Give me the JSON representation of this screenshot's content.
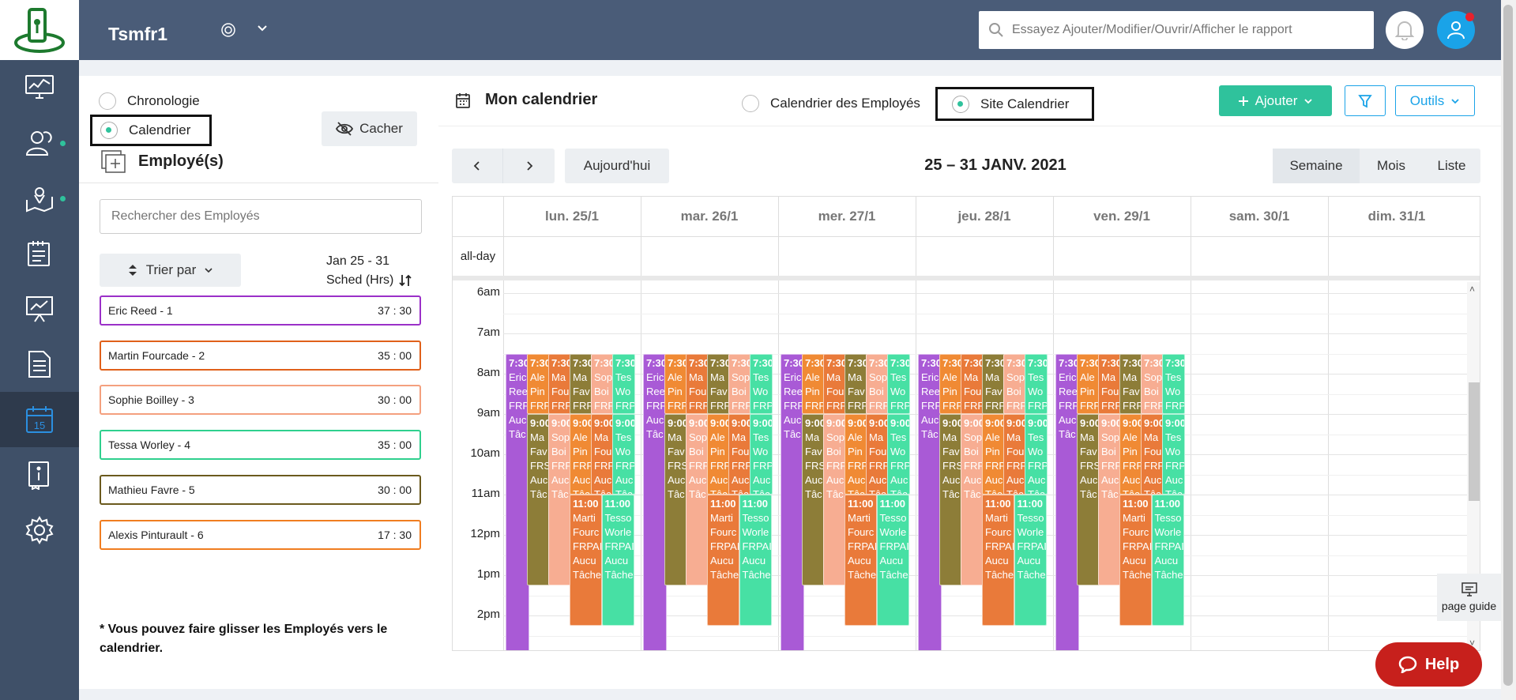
{
  "app": {
    "brand": "Tsmfr1"
  },
  "search": {
    "placeholder": "Essayez Ajouter/Modifier/Ouvrir/Afficher le rapport"
  },
  "sidebar": {
    "icons": [
      "dashboard-icon",
      "users-icon",
      "map-icon",
      "clipboard-icon",
      "presentation-icon",
      "document-icon",
      "calendar-icon",
      "info-book-icon",
      "settings-icon"
    ],
    "calendar_day": "15"
  },
  "left_panel": {
    "view_options": [
      "Chronologie",
      "Calendrier"
    ],
    "selected_view": "Calendrier",
    "hide_label": "Cacher",
    "employees_title": "Employé(s)",
    "search_placeholder": "Rechercher des Employés",
    "sort_label": "Trier par",
    "period_label": "Jan 25 - 31",
    "sched_label": "Sched (Hrs)",
    "employees": [
      {
        "name": "Eric Reed - 1",
        "hours": "37 : 30",
        "color": "#9b30c8"
      },
      {
        "name": "Martin Fourcade - 2",
        "hours": "35 : 00",
        "color": "#e0601a"
      },
      {
        "name": "Sophie Boilley - 3",
        "hours": "30 : 00",
        "color": "#f4a07e"
      },
      {
        "name": "Tessa Worley - 4",
        "hours": "35 : 00",
        "color": "#2fd08e"
      },
      {
        "name": "Mathieu Favre - 5",
        "hours": "30 : 00",
        "color": "#6b5a1e"
      },
      {
        "name": "Alexis Pinturault - 6",
        "hours": "17 : 30",
        "color": "#f07d20"
      }
    ],
    "drag_note": "* Vous pouvez faire glisser les Employés vers le calendrier."
  },
  "calendar": {
    "title": "Mon calendrier",
    "mode_employees": "Calendrier des Employés",
    "mode_site": "Site Calendrier",
    "add_label": "Ajouter",
    "tools_label": "Outils",
    "today_label": "Aujourd'hui",
    "range_title": "25 – 31 JANV. 2021",
    "views": [
      "Semaine",
      "Mois",
      "Liste"
    ],
    "days": [
      "lun. 25/1",
      "mar. 26/1",
      "mer. 27/1",
      "jeu. 28/1",
      "ven. 29/1",
      "sam. 30/1",
      "dim. 31/1"
    ],
    "allday_label": "all-day",
    "hours": [
      "6am",
      "7am",
      "8am",
      "9am",
      "10am",
      "11am",
      "12pm",
      "1pm",
      "2pm"
    ],
    "event_colors": {
      "eric": "#a95ad6",
      "alexis": "#f08a34",
      "martin": "#e97a3a",
      "mathieu": "#8d7d38",
      "sophie": "#f7ad92",
      "tessa": "#47e0a4"
    },
    "event_texts": {
      "t730": "7:30",
      "t900": "9:00",
      "t1100": "11:00",
      "eric": [
        "Eric",
        "Reed",
        "FRP",
        "Auc",
        "Tâc"
      ],
      "alexis": [
        "Ale",
        "Pin",
        "FRP"
      ],
      "martin_short": [
        "Ma",
        "Fou",
        "FRP"
      ],
      "mathieu": [
        "Ma",
        "Fav",
        "FRP"
      ],
      "sophie": [
        "Sop",
        "Boi",
        "FRP"
      ],
      "tessa": [
        "Tes",
        "Wo",
        "FRP"
      ],
      "mathieu9": [
        "Ma",
        "Fav",
        "FRS",
        "Auc",
        "Tâc"
      ],
      "sophie9": [
        "Sop",
        "Boi",
        "FRP",
        "Auc",
        "Tâc"
      ],
      "alexis9": [
        "Ale",
        "Pin",
        "FRP",
        "Auc",
        "Tâc"
      ],
      "martin9": [
        "Ma",
        "Fou",
        "FRP",
        "Auc",
        "Tâc"
      ],
      "tessa9": [
        "Tes",
        "Wo",
        "FRP",
        "Auc",
        "Tâc"
      ],
      "martin11": [
        "Marti",
        "Fourc",
        "FRPAI",
        "Aucu",
        "Tâche"
      ],
      "tessa11": [
        "Tesso",
        "Worle",
        "FRPAI",
        "Aucu",
        "Tâche"
      ]
    }
  },
  "page_guide": "page guide",
  "help_label": "Help"
}
